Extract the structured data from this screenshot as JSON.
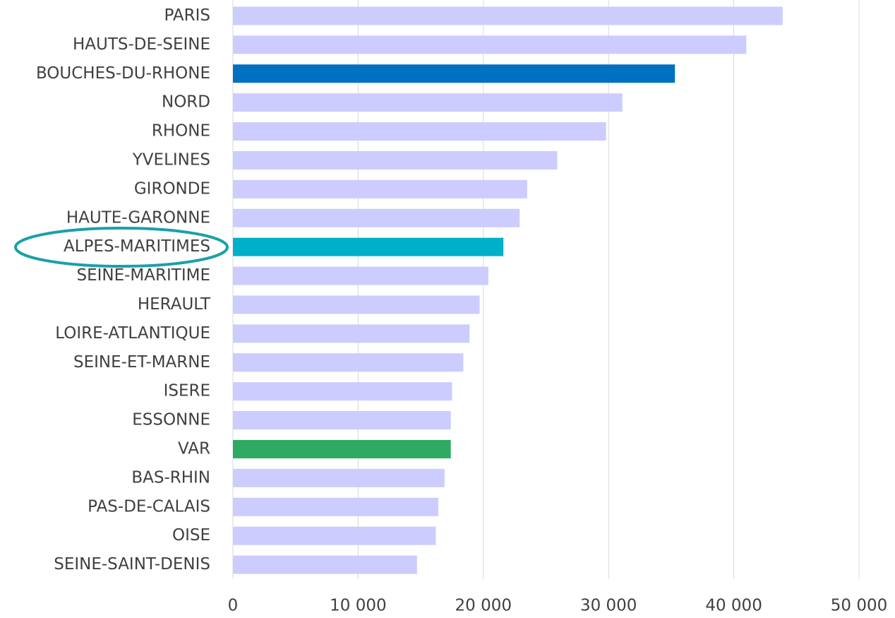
{
  "chart_data": {
    "type": "hbar",
    "categories": [
      "PARIS",
      "HAUTS-DE-SEINE",
      "BOUCHES-DU-RHONE",
      "NORD",
      "RHONE",
      "YVELINES",
      "GIRONDE",
      "HAUTE-GARONNE",
      "ALPES-MARITIMES",
      "SEINE-MARITIME",
      "HERAULT",
      "LOIRE-ATLANTIQUE",
      "SEINE-ET-MARNE",
      "ISERE",
      "ESSONNE",
      "VAR",
      "BAS-RHIN",
      "PAS-DE-CALAIS",
      "OISE",
      "SEINE-SAINT-DENIS"
    ],
    "values": [
      43900,
      41000,
      35300,
      31100,
      29800,
      25900,
      23500,
      22900,
      21600,
      20400,
      19700,
      18900,
      18400,
      17500,
      17400,
      17400,
      16900,
      16400,
      16200,
      14700
    ],
    "colors": [
      "#ccccff",
      "#ccccff",
      "#0070c0",
      "#ccccff",
      "#ccccff",
      "#ccccff",
      "#ccccff",
      "#ccccff",
      "#00b0c8",
      "#ccccff",
      "#ccccff",
      "#ccccff",
      "#ccccff",
      "#ccccff",
      "#ccccff",
      "#2eaa62",
      "#ccccff",
      "#ccccff",
      "#ccccff",
      "#ccccff"
    ],
    "xlim": [
      0,
      50000
    ],
    "xticks": [
      0,
      {
        "value": 10000,
        "label": "10 000"
      },
      {
        "value": 20000,
        "label": "20 000"
      },
      {
        "value": 30000,
        "label": "30 000"
      },
      {
        "value": 40000,
        "label": "40 000"
      },
      {
        "value": 50000,
        "label": "50 000"
      }
    ],
    "grid": true
  }
}
